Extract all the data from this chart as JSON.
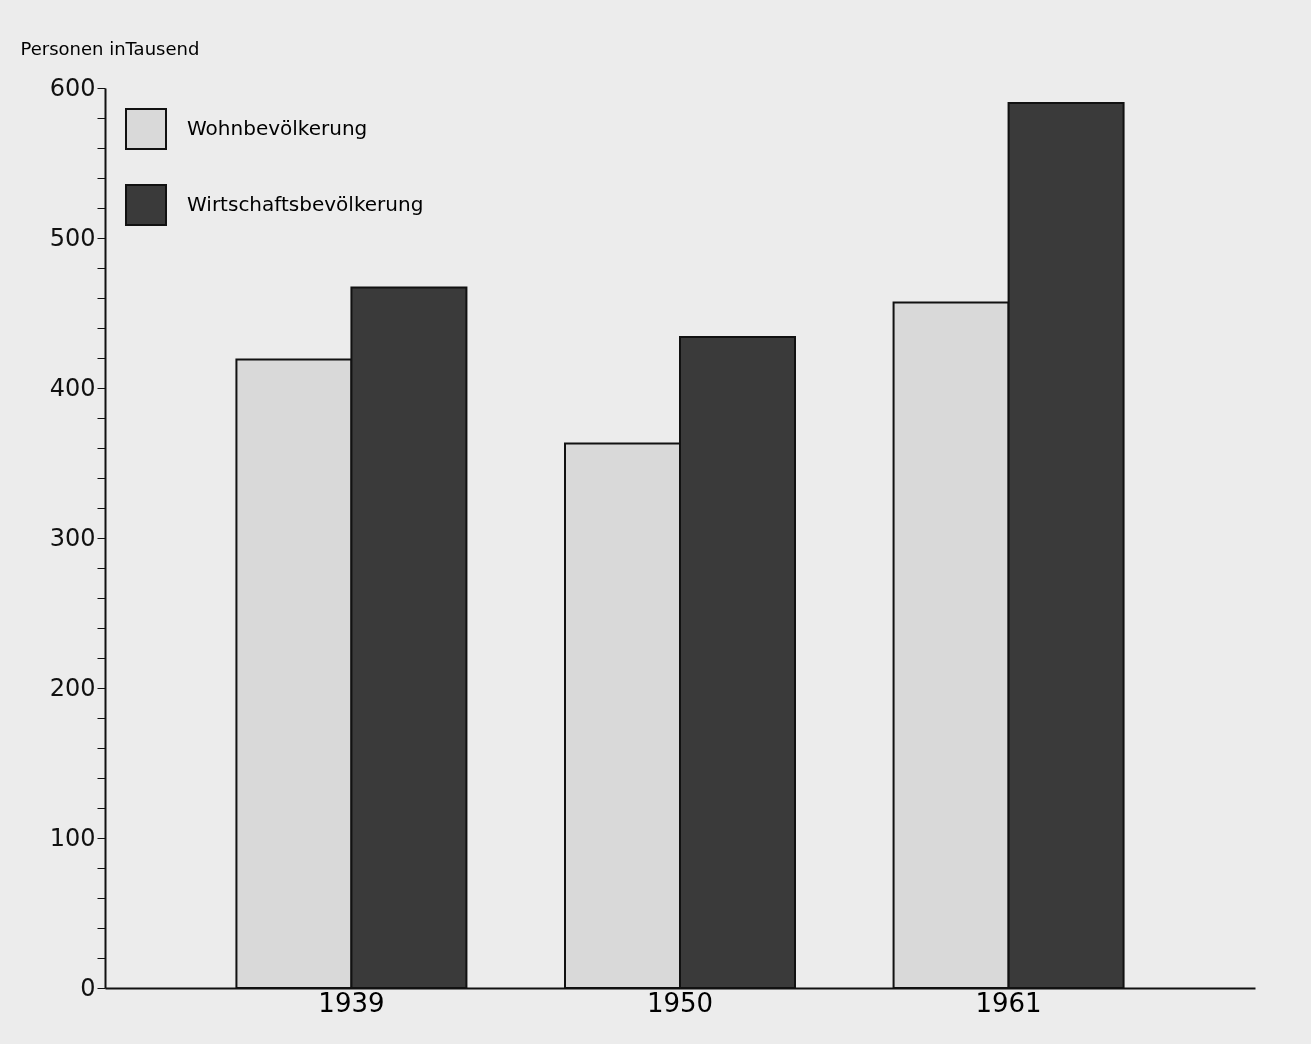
{
  "chart_data": {
    "type": "bar",
    "ylabel": "Personen inTausend",
    "categories": [
      "1939",
      "1950",
      "1961"
    ],
    "series": [
      {
        "name": "Wohnbevölkerung",
        "color": "#d9d9d9",
        "values": [
          419,
          363,
          457
        ]
      },
      {
        "name": "Wirtschaftsbevölkerung",
        "color": "#3a3a3a",
        "values": [
          467,
          434,
          590
        ]
      }
    ],
    "ylim": [
      0,
      600
    ],
    "yticks": [
      0,
      {
        "value": 20,
        "label": null
      },
      {
        "value": 40,
        "label": null
      },
      {
        "value": 60,
        "label": null
      },
      {
        "value": 80,
        "label": null
      },
      100,
      {
        "value": 120,
        "label": null
      },
      {
        "value": 140,
        "label": null
      },
      {
        "value": 160,
        "label": null
      },
      {
        "value": 180,
        "label": null
      },
      200,
      {
        "value": 220,
        "label": null
      },
      {
        "value": 240,
        "label": null
      },
      {
        "value": 260,
        "label": null
      },
      {
        "value": 280,
        "label": null
      },
      300,
      {
        "value": 320,
        "label": null
      },
      {
        "value": 340,
        "label": null
      },
      {
        "value": 360,
        "label": null
      },
      {
        "value": 380,
        "label": null
      },
      400,
      {
        "value": 420,
        "label": null
      },
      {
        "value": 440,
        "label": null
      },
      {
        "value": 460,
        "label": null
      },
      {
        "value": 480,
        "label": null
      },
      500,
      {
        "value": 520,
        "label": null
      },
      {
        "value": 540,
        "label": null
      },
      {
        "value": 560,
        "label": null
      },
      {
        "value": 580,
        "label": null
      },
      600
    ],
    "grid": false,
    "legend": "top left"
  }
}
